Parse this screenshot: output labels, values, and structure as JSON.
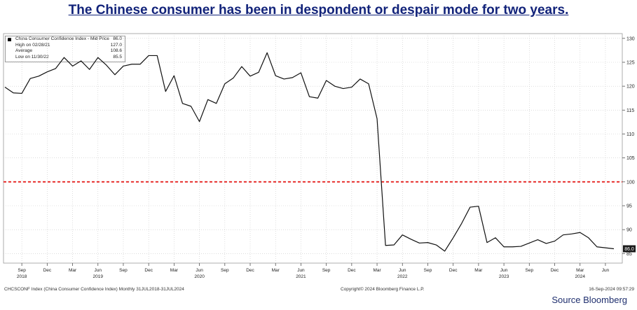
{
  "title": "The Chinese consumer has been in despondent or despair mode for two years.",
  "source": "Source Bloomberg",
  "legend": {
    "series_name": "China Consumer Confidence Index - Mid Price",
    "series_value": "86.0",
    "high_label": "High on 02/28/21",
    "high_value": "127.0",
    "avg_label": "Average",
    "avg_value": "108.6",
    "low_label": "Low on 11/30/22",
    "low_value": "85.5"
  },
  "footer": {
    "left": "CHCSCONF Index (China Consumer Confidence Index)  Monthly 31JUL2018-31JUL2024",
    "center": "Copyright© 2024 Bloomberg Finance L.P.",
    "right": "16-Sep-2024 09:57:29"
  },
  "colors": {
    "line": "#111111",
    "reference": "#e8312f",
    "title": "#12237a",
    "grid": "#c8c8c8"
  },
  "chart_data": {
    "type": "line",
    "title": "",
    "xlabel": "",
    "ylabel": "",
    "ylim": [
      83,
      131
    ],
    "yticks": [
      85,
      90,
      95,
      100,
      105,
      110,
      115,
      120,
      125,
      130
    ],
    "grid": true,
    "legend_position": "top-left",
    "reference_line": {
      "y": 100,
      "style": "dashed"
    },
    "last_value_label": "86.0",
    "x_start": "2018-07",
    "x_ticks": [
      {
        "month": "2018-09",
        "label": "Sep",
        "year": "2018"
      },
      {
        "month": "2018-12",
        "label": "Dec",
        "year": ""
      },
      {
        "month": "2019-03",
        "label": "Mar",
        "year": ""
      },
      {
        "month": "2019-06",
        "label": "Jun",
        "year": "2019"
      },
      {
        "month": "2019-09",
        "label": "Sep",
        "year": ""
      },
      {
        "month": "2019-12",
        "label": "Dec",
        "year": ""
      },
      {
        "month": "2020-03",
        "label": "Mar",
        "year": ""
      },
      {
        "month": "2020-06",
        "label": "Jun",
        "year": "2020"
      },
      {
        "month": "2020-09",
        "label": "Sep",
        "year": ""
      },
      {
        "month": "2020-12",
        "label": "Dec",
        "year": ""
      },
      {
        "month": "2021-03",
        "label": "Mar",
        "year": ""
      },
      {
        "month": "2021-06",
        "label": "Jun",
        "year": "2021"
      },
      {
        "month": "2021-09",
        "label": "Sep",
        "year": ""
      },
      {
        "month": "2021-12",
        "label": "Dec",
        "year": ""
      },
      {
        "month": "2022-03",
        "label": "Mar",
        "year": ""
      },
      {
        "month": "2022-06",
        "label": "Jun",
        "year": "2022"
      },
      {
        "month": "2022-09",
        "label": "Sep",
        "year": ""
      },
      {
        "month": "2022-12",
        "label": "Dec",
        "year": ""
      },
      {
        "month": "2023-03",
        "label": "Mar",
        "year": ""
      },
      {
        "month": "2023-06",
        "label": "Jun",
        "year": "2023"
      },
      {
        "month": "2023-09",
        "label": "Sep",
        "year": ""
      },
      {
        "month": "2023-12",
        "label": "Dec",
        "year": ""
      },
      {
        "month": "2024-03",
        "label": "Mar",
        "year": "2024"
      },
      {
        "month": "2024-06",
        "label": "Jun",
        "year": ""
      }
    ],
    "series": [
      {
        "values": [
          119.8,
          118.6,
          118.5,
          121.6,
          122.1,
          123.0,
          123.7,
          126.0,
          124.2,
          125.3,
          123.5,
          126.0,
          124.4,
          122.4,
          124.2,
          124.6,
          124.6,
          126.4,
          126.4,
          118.9,
          122.2,
          116.4,
          115.8,
          112.6,
          117.2,
          116.4,
          120.5,
          121.7,
          124.1,
          122.1,
          122.9,
          127.0,
          122.2,
          121.5,
          121.8,
          122.8,
          117.8,
          117.5,
          121.2,
          120.0,
          119.5,
          119.8,
          121.5,
          120.5,
          113.2,
          86.7,
          86.8,
          88.9,
          88.0,
          87.2,
          87.3,
          86.8,
          85.5,
          88.3,
          91.3,
          94.7,
          94.9,
          87.3,
          88.3,
          86.4,
          86.4,
          86.5,
          87.2,
          87.9,
          87.1,
          87.6,
          88.9,
          89.1,
          89.4,
          88.3,
          86.4,
          86.2,
          86.0
        ]
      }
    ]
  }
}
